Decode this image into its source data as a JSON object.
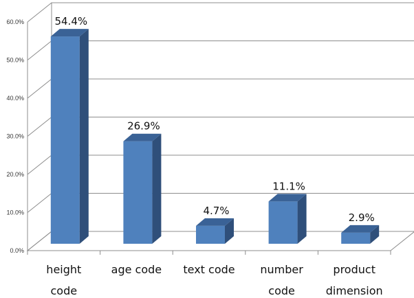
{
  "chart_data": {
    "type": "bar",
    "style": "3d-column",
    "categories": [
      [
        "height",
        "code"
      ],
      [
        "age code"
      ],
      [
        "text code"
      ],
      [
        "number",
        "code"
      ],
      [
        "product",
        "dimension"
      ]
    ],
    "values": [
      54.4,
      26.9,
      4.7,
      11.1,
      2.9
    ],
    "data_labels": [
      "54.4%",
      "26.9%",
      "4.7%",
      "11.1%",
      "2.9%"
    ],
    "y_ticks": [
      "0.0%",
      "10.0%",
      "20.0%",
      "30.0%",
      "40.0%",
      "50.0%",
      "60.0%"
    ],
    "ylim": [
      0,
      60
    ],
    "grid": true,
    "legend": "none",
    "colors": {
      "bar_front": "#4f81bd",
      "bar_side": "#2f4f7a",
      "bar_top": "#3a6296",
      "grid": "#8c8c8c"
    }
  }
}
